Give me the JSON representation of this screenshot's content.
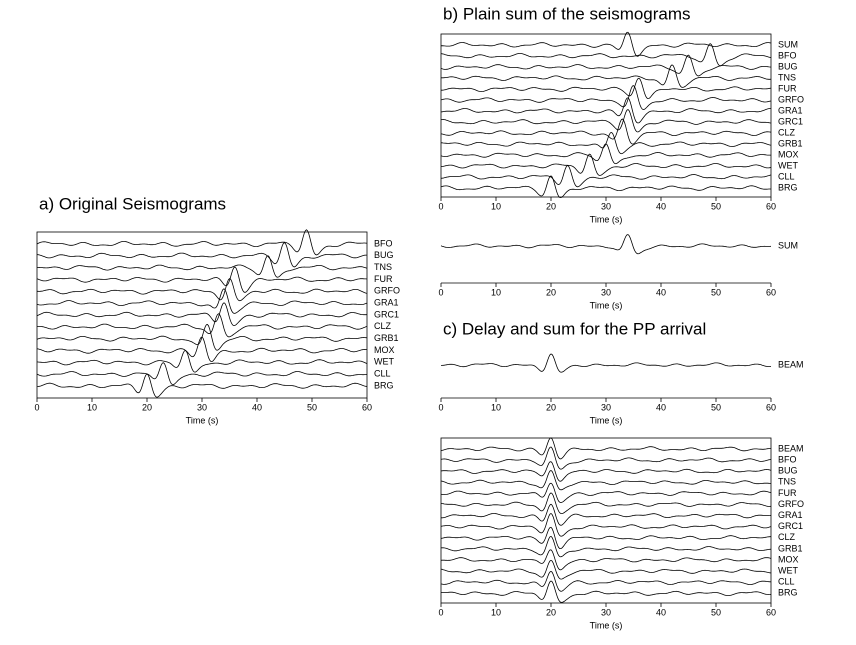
{
  "chart_data": [
    {
      "type": "seismogram",
      "title": "a) Original Seismograms",
      "xlabel": "Time (s)",
      "xlim": [
        0,
        60
      ],
      "xticks": [
        0,
        10,
        20,
        30,
        40,
        50,
        60
      ],
      "frame": true,
      "series": [
        {
          "name": "BFO",
          "arrival": 49
        },
        {
          "name": "BUG",
          "arrival": 45
        },
        {
          "name": "TNS",
          "arrival": 42
        },
        {
          "name": "FUR",
          "arrival": 36
        },
        {
          "name": "GRFO",
          "arrival": 35
        },
        {
          "name": "GRA1",
          "arrival": 34
        },
        {
          "name": "GRC1",
          "arrival": 34
        },
        {
          "name": "CLZ",
          "arrival": 33
        },
        {
          "name": "GRB1",
          "arrival": 31
        },
        {
          "name": "MOX",
          "arrival": 30
        },
        {
          "name": "WET",
          "arrival": 27
        },
        {
          "name": "CLL",
          "arrival": 23
        },
        {
          "name": "BRG",
          "arrival": 20
        }
      ]
    },
    {
      "type": "seismogram",
      "title": "b) Plain sum of the seismograms",
      "xlabel": "Time (s)",
      "xlim": [
        0,
        60
      ],
      "xticks": [
        0,
        10,
        20,
        30,
        40,
        50,
        60
      ],
      "frame": true,
      "series": [
        {
          "name": "SUM",
          "arrival": 34
        },
        {
          "name": "BFO",
          "arrival": 49
        },
        {
          "name": "BUG",
          "arrival": 45
        },
        {
          "name": "TNS",
          "arrival": 42
        },
        {
          "name": "FUR",
          "arrival": 36
        },
        {
          "name": "GRFO",
          "arrival": 35
        },
        {
          "name": "GRA1",
          "arrival": 34
        },
        {
          "name": "GRC1",
          "arrival": 34
        },
        {
          "name": "CLZ",
          "arrival": 33
        },
        {
          "name": "GRB1",
          "arrival": 31
        },
        {
          "name": "MOX",
          "arrival": 30
        },
        {
          "name": "WET",
          "arrival": 27
        },
        {
          "name": "CLL",
          "arrival": 23
        },
        {
          "name": "BRG",
          "arrival": 20
        }
      ]
    },
    {
      "type": "seismogram",
      "xlabel": "Time (s)",
      "xlim": [
        0,
        60
      ],
      "xticks": [
        0,
        10,
        20,
        30,
        40,
        50,
        60
      ],
      "frame": false,
      "series": [
        {
          "name": "SUM",
          "arrival": 34
        }
      ]
    },
    {
      "type": "seismogram",
      "title": "c) Delay and sum for the PP arrival",
      "xlabel": "Time (s)",
      "xlim": [
        0,
        60
      ],
      "xticks": [
        0,
        10,
        20,
        30,
        40,
        50,
        60
      ],
      "frame": false,
      "series": [
        {
          "name": "BEAM",
          "arrival": 20
        }
      ]
    },
    {
      "type": "seismogram",
      "xlabel": "Time (s)",
      "xlim": [
        0,
        60
      ],
      "xticks": [
        0,
        10,
        20,
        30,
        40,
        50,
        60
      ],
      "frame": true,
      "series": [
        {
          "name": "BEAM",
          "arrival": 20
        },
        {
          "name": "BFO",
          "arrival": 20
        },
        {
          "name": "BUG",
          "arrival": 20
        },
        {
          "name": "TNS",
          "arrival": 20
        },
        {
          "name": "FUR",
          "arrival": 20
        },
        {
          "name": "GRFO",
          "arrival": 20
        },
        {
          "name": "GRA1",
          "arrival": 20
        },
        {
          "name": "GRC1",
          "arrival": 20
        },
        {
          "name": "CLZ",
          "arrival": 20
        },
        {
          "name": "GRB1",
          "arrival": 20
        },
        {
          "name": "MOX",
          "arrival": 20
        },
        {
          "name": "WET",
          "arrival": 20
        },
        {
          "name": "CLL",
          "arrival": 20
        },
        {
          "name": "BRG",
          "arrival": 20
        }
      ]
    }
  ]
}
